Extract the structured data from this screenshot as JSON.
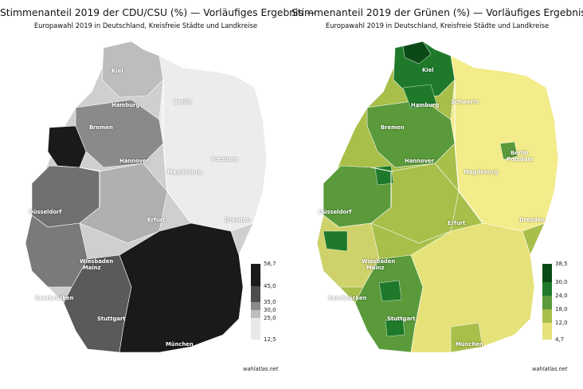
{
  "maps": [
    {
      "title": "Stimmenanteil 2019 der CDU/CSU (%) — Vorläufiges Ergebnis —",
      "subtitle": "Europawahl 2019 in Deutschland, Kreisfreie Städte und Landkreise",
      "legend_ticks": [
        "58,7",
        "45,0",
        "35,0",
        "30,0",
        "25,0",
        "12,5"
      ],
      "legend_colors": [
        "#1a1a1a",
        "#4d4d4d",
        "#8a8a8a",
        "#bdbdbd",
        "#e8e8e8"
      ],
      "cities": [
        {
          "name": "Kiel"
        },
        {
          "name": "Hamburg"
        },
        {
          "name": "Bremen"
        },
        {
          "name": "Hannover"
        },
        {
          "name": "Berlin"
        },
        {
          "name": "Potsdam"
        },
        {
          "name": "Magdeburg"
        },
        {
          "name": "Düsseldorf"
        },
        {
          "name": "Erfurt"
        },
        {
          "name": "Dresden"
        },
        {
          "name": "Wiesbaden"
        },
        {
          "name": "Mainz"
        },
        {
          "name": "Saarbrücken"
        },
        {
          "name": "Stuttgart"
        },
        {
          "name": "München"
        }
      ],
      "credit": "wahlatlas.net"
    },
    {
      "title": "Stimmenanteil 2019 der Grünen (%) — Vorläufiges Ergebnis —",
      "subtitle": "Europawahl 2019 in Deutschland, Kreisfreie Städte und Landkreise",
      "legend_ticks": [
        "38,5",
        "30,0",
        "24,0",
        "18,0",
        "12,0",
        "4,7"
      ],
      "legend_colors": [
        "#0b4a16",
        "#1e7a2a",
        "#5a9a3a",
        "#a8bf4a",
        "#e6e27a"
      ],
      "cities": [
        {
          "name": "Kiel"
        },
        {
          "name": "Hamburg"
        },
        {
          "name": "Schwerin"
        },
        {
          "name": "Bremen"
        },
        {
          "name": "Hannover"
        },
        {
          "name": "Berlin"
        },
        {
          "name": "Potsdam"
        },
        {
          "name": "Magdeburg"
        },
        {
          "name": "Düsseldorf"
        },
        {
          "name": "Erfurt"
        },
        {
          "name": "Dresden"
        },
        {
          "name": "Wiesbaden"
        },
        {
          "name": "Mainz"
        },
        {
          "name": "Saarbrücken"
        },
        {
          "name": "Stuttgart"
        },
        {
          "name": "München"
        }
      ],
      "credit": "wahlatlas.net"
    }
  ]
}
